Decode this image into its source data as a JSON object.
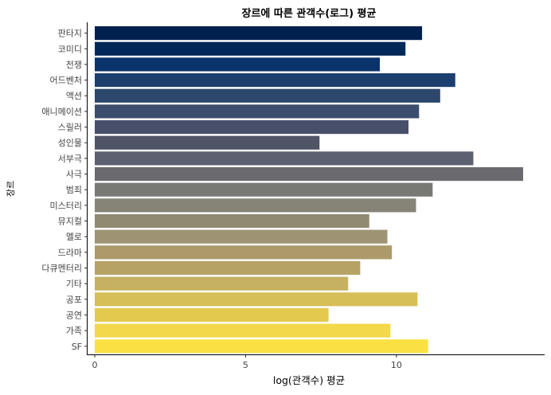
{
  "chart_data": {
    "type": "bar",
    "orientation": "horizontal",
    "title": "장르에 따른 관객수(로그) 평균",
    "xlabel": "log(관객수) 평균",
    "ylabel": "장르",
    "xlim": [
      0,
      14.4
    ],
    "xticks": [
      0,
      5,
      10
    ],
    "grid": false,
    "legend": "none",
    "categories": [
      "판타지",
      "코미디",
      "전쟁",
      "어드벤처",
      "액션",
      "애니메이션",
      "스릴러",
      "성인물",
      "서부극",
      "사극",
      "범죄",
      "미스터리",
      "뮤지컬",
      "멜로",
      "드라마",
      "다큐멘터리",
      "기타",
      "공포",
      "공연",
      "가족",
      "SF"
    ],
    "values": [
      10.85,
      10.3,
      9.45,
      11.95,
      11.45,
      10.75,
      10.4,
      7.45,
      12.55,
      14.2,
      11.2,
      10.65,
      9.1,
      9.7,
      9.85,
      8.8,
      8.4,
      10.7,
      7.75,
      9.8,
      11.05
    ],
    "colors": [
      "#00204d",
      "#002957",
      "#0b336b",
      "#1d3f6e",
      "#2d466b",
      "#3c4d6d",
      "#484f6b",
      "#4f5466",
      "#5d6070",
      "#6b6b6f",
      "#787875",
      "#858476",
      "#918a73",
      "#9e9474",
      "#ad9a6a",
      "#b7a266",
      "#c6b162",
      "#d7bf57",
      "#e4c94f",
      "#f3d84b",
      "#fae042"
    ]
  }
}
